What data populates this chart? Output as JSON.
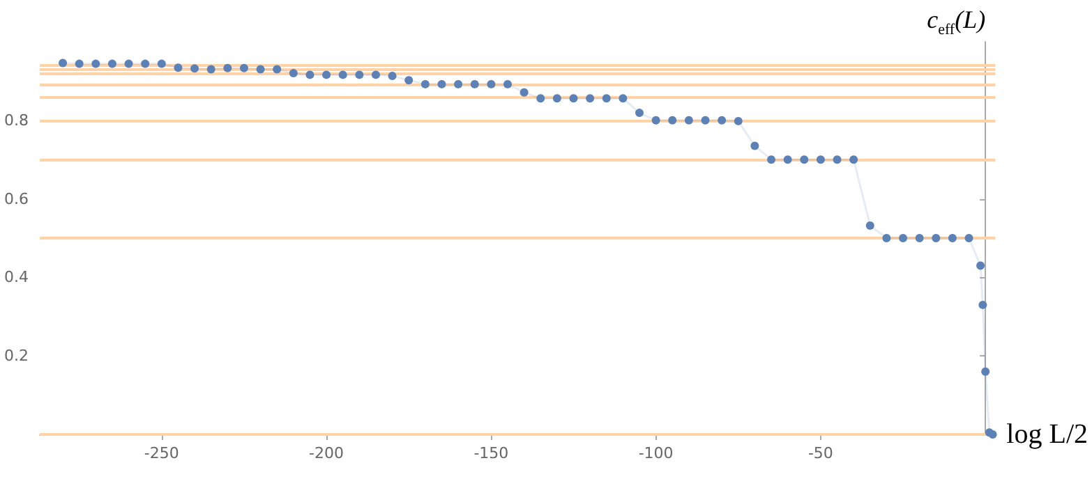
{
  "chart_data": {
    "type": "line",
    "xlabel": "log L/2",
    "ylabel": "c$_{eff}$(L)",
    "xlim": [
      -287,
      3
    ],
    "ylim": [
      0,
      1
    ],
    "xticks": [
      -250,
      -200,
      -150,
      -100,
      -50
    ],
    "yticks": [
      0.2,
      0.4,
      0.6,
      0.8
    ],
    "marker": "circle",
    "series": [
      {
        "color": "#5e81b5",
        "x": [
          -280,
          -275,
          -270,
          -265,
          -260,
          -255,
          -250,
          -245,
          -240,
          -235,
          -230,
          -225,
          -220,
          -215,
          -210,
          -205,
          -200,
          -195,
          -190,
          -185,
          -180,
          -175,
          -170,
          -165,
          -160,
          -155,
          -150,
          -145,
          -140,
          -135,
          -130,
          -125,
          -120,
          -115,
          -110,
          -105,
          -100,
          -95,
          -90,
          -85,
          -80,
          -75,
          -70,
          -65,
          -60,
          -55,
          -50,
          -45,
          -40,
          -35,
          -30,
          -25,
          -20,
          -15,
          -10,
          -5,
          -1.5,
          -0.8,
          0,
          1.2,
          2.2
        ],
        "values": [
          0.946,
          0.944,
          0.944,
          0.944,
          0.944,
          0.944,
          0.944,
          0.934,
          0.932,
          0.93,
          0.933,
          0.933,
          0.93,
          0.93,
          0.92,
          0.916,
          0.916,
          0.916,
          0.916,
          0.916,
          0.913,
          0.902,
          0.892,
          0.892,
          0.892,
          0.892,
          0.892,
          0.892,
          0.871,
          0.856,
          0.856,
          0.856,
          0.856,
          0.856,
          0.856,
          0.819,
          0.8,
          0.8,
          0.8,
          0.8,
          0.8,
          0.798,
          0.735,
          0.7,
          0.7,
          0.7,
          0.7,
          0.7,
          0.7,
          0.532,
          0.5,
          0.5,
          0.5,
          0.5,
          0.5,
          0.5,
          0.43,
          0.33,
          0.16,
          0.005,
          0
        ]
      }
    ],
    "ref_lines": [
      {
        "axis": "y",
        "value": 0,
        "color": "#ffd3a6"
      },
      {
        "axis": "y",
        "value": 0.5,
        "color": "#ffd3a6"
      },
      {
        "axis": "y",
        "value": 0.7,
        "color": "#ffd3a6"
      },
      {
        "axis": "y",
        "value": 0.8,
        "color": "#ffd3a6"
      },
      {
        "axis": "y",
        "value": 0.857,
        "color": "#ffd3a6"
      },
      {
        "axis": "y",
        "value": 0.893,
        "color": "#ffd3a6"
      },
      {
        "axis": "y",
        "value": 0.917,
        "color": "#ffd3a6"
      },
      {
        "axis": "y",
        "value": 0.933,
        "color": "#ffd3a6"
      },
      {
        "axis": "y",
        "value": 0.945,
        "color": "#ffd3a6"
      }
    ]
  }
}
